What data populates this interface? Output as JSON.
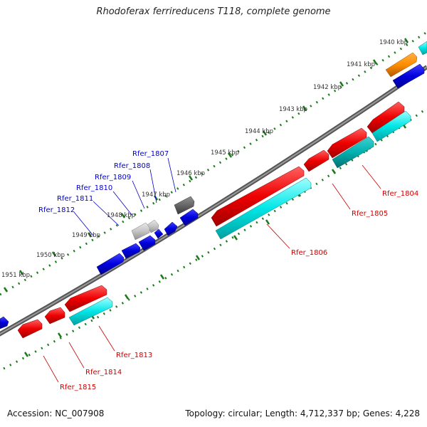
{
  "title": "Rhodoferax ferrireducens T118, complete genome",
  "footer": {
    "accession": "Accession: NC_007908",
    "summary": "Topology: circular; Length: 4,712,337 bp; Genes: 4,228"
  },
  "kbp_labels": [
    "1940 kbp",
    "1941 kbp",
    "1942 kbp",
    "1943 kbp",
    "1944 kbp",
    "1945 kbp",
    "1946 kbp",
    "1947 kbp",
    "1948 kbp",
    "1949 kbp",
    "1950 kbp",
    "1951 kbp"
  ],
  "gene_labels_top": [
    "Rfer_1807",
    "Rfer_1808",
    "Rfer_1809",
    "Rfer_1810",
    "Rfer_1811",
    "Rfer_1812"
  ],
  "gene_labels_bottom": [
    "Rfer_1804",
    "Rfer_1805",
    "Rfer_1806",
    "Rfer_1813",
    "Rfer_1814",
    "Rfer_1815"
  ],
  "colors": {
    "backbone": "#666666",
    "ticks": "#1a7a1a",
    "forward_gene": "#0000dd",
    "reverse_gene": "#ee0000",
    "rna_cyan": "#00e0e0",
    "teal": "#00b0b0",
    "orange": "#ff8c00",
    "gray_light": "#c8c8c8",
    "gray_dark": "#666666"
  }
}
